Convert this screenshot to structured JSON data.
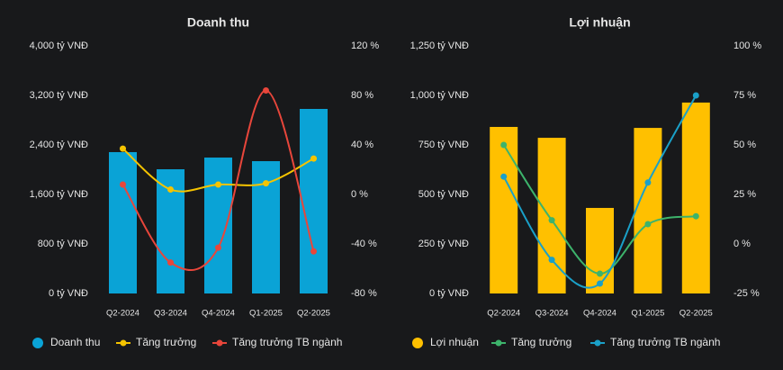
{
  "chart_data": [
    {
      "type": "bar",
      "title": "Doanh thu",
      "categories": [
        "Q2-2024",
        "Q3-2024",
        "Q4-2024",
        "Q1-2025",
        "Q2-2025"
      ],
      "series": [
        {
          "name": "Doanh thu",
          "type": "bar",
          "color": "#0aa3d6",
          "values": [
            2284,
            2007,
            2196,
            2138,
            2982
          ]
        },
        {
          "name": "Tăng trưởng",
          "type": "line",
          "axis": "y2",
          "color": "#f5c400",
          "values": [
            37,
            4,
            8,
            9,
            29
          ]
        },
        {
          "name": "Tăng trưởng TB ngành",
          "type": "line",
          "axis": "y2",
          "color": "#e8463b",
          "values": [
            8,
            -55,
            -43,
            84,
            -46
          ]
        }
      ],
      "ylim": [
        0,
        4000
      ],
      "yticks": [
        {
          "value": 0,
          "label": "0 tỷ VNĐ"
        },
        {
          "value": 800,
          "label": "800 tỷ VNĐ"
        },
        {
          "value": 1600,
          "label": "1,600 tỷ VNĐ"
        },
        {
          "value": 2400,
          "label": "2,400 tỷ VNĐ"
        },
        {
          "value": 3200,
          "label": "3,200 tỷ VNĐ"
        },
        {
          "value": 4000,
          "label": "4,000 tỷ VNĐ"
        }
      ],
      "y2lim": [
        -80,
        120
      ],
      "y2ticks": [
        {
          "value": -80,
          "label": "-80 %"
        },
        {
          "value": -40,
          "label": "-40 %"
        },
        {
          "value": 0,
          "label": "0 %"
        },
        {
          "value": 40,
          "label": "40 %"
        },
        {
          "value": 80,
          "label": "80 %"
        },
        {
          "value": 120,
          "label": "120 %"
        }
      ]
    },
    {
      "type": "bar",
      "title": "Lợi nhuận",
      "categories": [
        "Q2-2024",
        "Q3-2024",
        "Q4-2024",
        "Q1-2025",
        "Q2-2025"
      ],
      "series": [
        {
          "name": "Lợi nhuận",
          "type": "bar",
          "color": "#ffc000",
          "values": [
            841,
            786,
            432,
            836,
            964
          ]
        },
        {
          "name": "Tăng trưởng",
          "type": "line",
          "axis": "y2",
          "color": "#3db36b",
          "values": [
            50,
            12,
            -15,
            10,
            14
          ]
        },
        {
          "name": "Tăng trưởng TB ngành",
          "type": "line",
          "axis": "y2",
          "color": "#1aa0c8",
          "values": [
            34,
            -8,
            -20,
            31,
            75
          ]
        }
      ],
      "ylim": [
        0,
        1250
      ],
      "yticks": [
        {
          "value": 0,
          "label": "0 tỷ VNĐ"
        },
        {
          "value": 250,
          "label": "250 tỷ VNĐ"
        },
        {
          "value": 500,
          "label": "500 tỷ VNĐ"
        },
        {
          "value": 750,
          "label": "750 tỷ VNĐ"
        },
        {
          "value": 1000,
          "label": "1,000 tỷ VNĐ"
        },
        {
          "value": 1250,
          "label": "1,250 tỷ VNĐ"
        }
      ],
      "y2lim": [
        -25,
        100
      ],
      "y2ticks": [
        {
          "value": -25,
          "label": "-25 %"
        },
        {
          "value": 0,
          "label": "0 %"
        },
        {
          "value": 25,
          "label": "25 %"
        },
        {
          "value": 50,
          "label": "50 %"
        },
        {
          "value": 75,
          "label": "75 %"
        },
        {
          "value": 100,
          "label": "100 %"
        }
      ]
    }
  ]
}
